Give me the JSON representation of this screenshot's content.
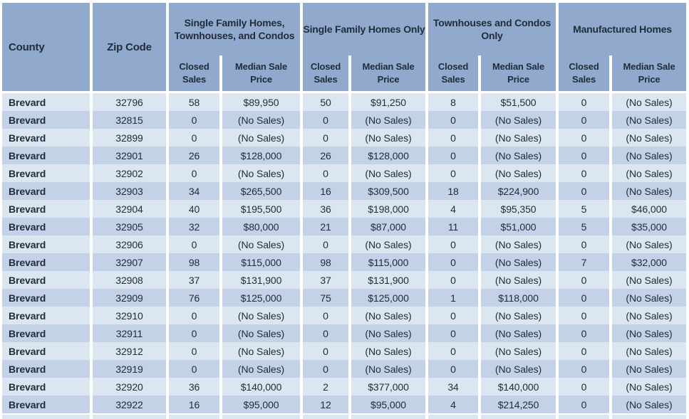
{
  "colors": {
    "header_bg": "#90a9cc",
    "row_light": "#dce6f1",
    "row_dark": "#c3d2e7",
    "text": "#212d3b",
    "background": "#ffffff"
  },
  "chart_data": {
    "type": "table",
    "title": "",
    "header": {
      "county": "County",
      "zip": "Zip Code",
      "groups": [
        {
          "label": "Single Family Homes,\nTownhouses, and Condos",
          "sub": [
            "Closed\nSales",
            "Median Sale\nPrice"
          ]
        },
        {
          "label": "Single Family Homes Only",
          "sub": [
            "Closed\nSales",
            "Median Sale\nPrice"
          ]
        },
        {
          "label": "Townhouses and Condos\nOnly",
          "sub": [
            "Closed\nSales",
            "Median Sale\nPrice"
          ]
        },
        {
          "label": "Manufactured Homes",
          "sub": [
            "Closed\nSales",
            "Median Sale\nPrice"
          ]
        }
      ]
    },
    "rows": [
      [
        "Brevard",
        "32796",
        "58",
        "$89,950",
        "50",
        "$91,250",
        "8",
        "$51,500",
        "0",
        "(No Sales)"
      ],
      [
        "Brevard",
        "32815",
        "0",
        "(No Sales)",
        "0",
        "(No Sales)",
        "0",
        "(No Sales)",
        "0",
        "(No Sales)"
      ],
      [
        "Brevard",
        "32899",
        "0",
        "(No Sales)",
        "0",
        "(No Sales)",
        "0",
        "(No Sales)",
        "0",
        "(No Sales)"
      ],
      [
        "Brevard",
        "32901",
        "26",
        "$128,000",
        "26",
        "$128,000",
        "0",
        "(No Sales)",
        "0",
        "(No Sales)"
      ],
      [
        "Brevard",
        "32902",
        "0",
        "(No Sales)",
        "0",
        "(No Sales)",
        "0",
        "(No Sales)",
        "0",
        "(No Sales)"
      ],
      [
        "Brevard",
        "32903",
        "34",
        "$265,500",
        "16",
        "$309,500",
        "18",
        "$224,900",
        "0",
        "(No Sales)"
      ],
      [
        "Brevard",
        "32904",
        "40",
        "$195,500",
        "36",
        "$198,000",
        "4",
        "$95,350",
        "5",
        "$46,000"
      ],
      [
        "Brevard",
        "32905",
        "32",
        "$80,000",
        "21",
        "$87,000",
        "11",
        "$51,000",
        "5",
        "$35,000"
      ],
      [
        "Brevard",
        "32906",
        "0",
        "(No Sales)",
        "0",
        "(No Sales)",
        "0",
        "(No Sales)",
        "0",
        "(No Sales)"
      ],
      [
        "Brevard",
        "32907",
        "98",
        "$115,000",
        "98",
        "$115,000",
        "0",
        "(No Sales)",
        "7",
        "$32,000"
      ],
      [
        "Brevard",
        "32908",
        "37",
        "$131,900",
        "37",
        "$131,900",
        "0",
        "(No Sales)",
        "0",
        "(No Sales)"
      ],
      [
        "Brevard",
        "32909",
        "76",
        "$125,000",
        "75",
        "$125,000",
        "1",
        "$118,000",
        "0",
        "(No Sales)"
      ],
      [
        "Brevard",
        "32910",
        "0",
        "(No Sales)",
        "0",
        "(No Sales)",
        "0",
        "(No Sales)",
        "0",
        "(No Sales)"
      ],
      [
        "Brevard",
        "32911",
        "0",
        "(No Sales)",
        "0",
        "(No Sales)",
        "0",
        "(No Sales)",
        "0",
        "(No Sales)"
      ],
      [
        "Brevard",
        "32912",
        "0",
        "(No Sales)",
        "0",
        "(No Sales)",
        "0",
        "(No Sales)",
        "0",
        "(No Sales)"
      ],
      [
        "Brevard",
        "32919",
        "0",
        "(No Sales)",
        "0",
        "(No Sales)",
        "0",
        "(No Sales)",
        "0",
        "(No Sales)"
      ],
      [
        "Brevard",
        "32920",
        "36",
        "$140,000",
        "2",
        "$377,000",
        "34",
        "$140,000",
        "0",
        "(No Sales)"
      ],
      [
        "Brevard",
        "32922",
        "16",
        "$95,000",
        "12",
        "$95,000",
        "4",
        "$214,250",
        "0",
        "(No Sales)"
      ]
    ],
    "partial_row_visible": true
  }
}
